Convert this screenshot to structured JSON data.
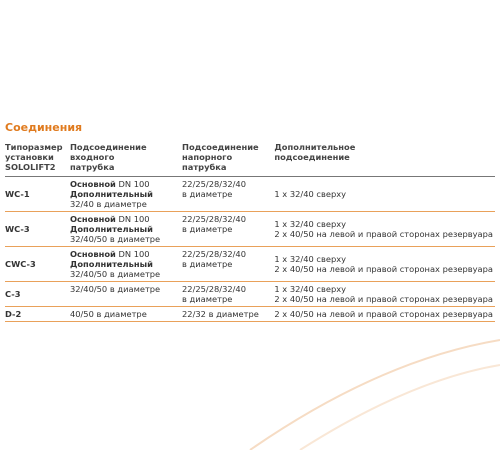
{
  "header": {
    "title": "Соединения"
  },
  "table": {
    "headers": [
      [
        "Типоразмер",
        "установки",
        "SOLOLIFT2"
      ],
      [
        "Подсоединение",
        "входного",
        "патрубка"
      ],
      [
        "Подсоединение",
        "напорного",
        "патрубка"
      ],
      [
        "Дополнительное",
        "подсоединение"
      ]
    ],
    "rows": [
      {
        "type": "WC-1",
        "inlet": [
          {
            "bold": "Основной",
            "text": "DN 100"
          },
          {
            "bold": "Дополнительный"
          },
          {
            "text": "32/40 в диаметре"
          }
        ],
        "outlet": [
          "22/25/28/32/40",
          "в диаметре"
        ],
        "extra": [
          "1 x 32/40 сверху"
        ]
      },
      {
        "type": "WC-3",
        "inlet": [
          {
            "bold": "Основной",
            "text": "DN 100"
          },
          {
            "bold": "Дополнительный"
          },
          {
            "text": "32/40/50 в диаметре"
          }
        ],
        "outlet": [
          "22/25/28/32/40",
          "в диаметре"
        ],
        "extra": [
          "1 x 32/40 сверху",
          "2 x 40/50 на левой и правой сторонах резервуара"
        ]
      },
      {
        "type": "CWC-3",
        "inlet": [
          {
            "bold": "Основной",
            "text": "DN 100"
          },
          {
            "bold": "Дополнительный"
          },
          {
            "text": "32/40/50 в диаметре"
          }
        ],
        "outlet": [
          "22/25/28/32/40",
          "в диаметре"
        ],
        "extra": [
          "1 x 32/40 сверху",
          "2 x 40/50 на левой и правой сторонах резервуара"
        ]
      },
      {
        "type": "C-3",
        "inlet": [
          {
            "text": "32/40/50 в диаметре"
          }
        ],
        "outlet": [
          "22/25/28/32/40",
          "в диаметре"
        ],
        "extra": [
          "1 x 32/40 сверху",
          "2 x 40/50 на левой и правой сторонах резервуара"
        ]
      },
      {
        "type": "D-2",
        "inlet": [
          {
            "text": "40/50 в диаметре"
          }
        ],
        "outlet": [
          "22/32 в диаметре"
        ],
        "extra": [
          "2 x 40/50 на левой и правой сторонах резервуара"
        ]
      }
    ]
  }
}
